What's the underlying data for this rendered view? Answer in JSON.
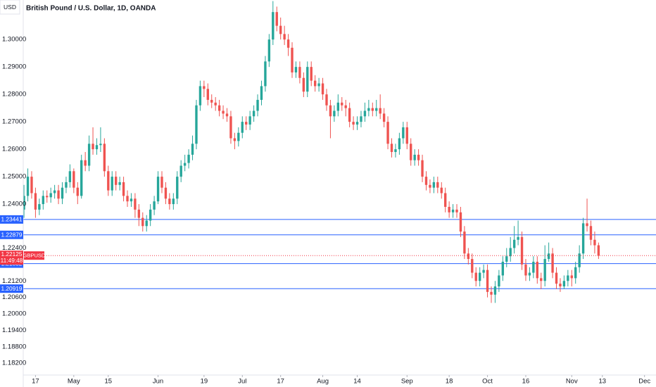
{
  "chart_data": {
    "type": "candlestick",
    "title": "British Pound / U.S. Dollar, 1D, OANDA",
    "currency": "USD",
    "up_color": "#26a69a",
    "down_color": "#ef5350",
    "grid": false,
    "ylim": [
      1.1777,
      1.3144
    ],
    "yticks": [
      {
        "value": 1.3,
        "label": "1.30000"
      },
      {
        "value": 1.29,
        "label": "1.29000"
      },
      {
        "value": 1.28,
        "label": "1.28000"
      },
      {
        "value": 1.27,
        "label": "1.27000"
      },
      {
        "value": 1.26,
        "label": "1.26000"
      },
      {
        "value": 1.25,
        "label": "1.25000"
      },
      {
        "value": 1.24,
        "label": "1.24000"
      },
      {
        "value": 1.224,
        "label": "1.22400"
      },
      {
        "value": 1.212,
        "label": "1.21200"
      },
      {
        "value": 1.206,
        "label": "1.20600"
      },
      {
        "value": 1.2,
        "label": "1.20000"
      },
      {
        "value": 1.194,
        "label": "1.19400"
      },
      {
        "value": 1.188,
        "label": "1.18800"
      },
      {
        "value": 1.182,
        "label": "1.18200"
      }
    ],
    "xlim": [
      -0.2,
      165
    ],
    "xticks": [
      {
        "value": 3,
        "label": "17"
      },
      {
        "value": 13,
        "label": "May"
      },
      {
        "value": 22,
        "label": "15"
      },
      {
        "value": 35,
        "label": "Jun"
      },
      {
        "value": 47,
        "label": "19"
      },
      {
        "value": 57,
        "label": "Jul"
      },
      {
        "value": 67,
        "label": "17"
      },
      {
        "value": 78,
        "label": "Aug"
      },
      {
        "value": 87,
        "label": "14"
      },
      {
        "value": 100,
        "label": "Sep"
      },
      {
        "value": 111,
        "label": "18"
      },
      {
        "value": 121,
        "label": "Oct"
      },
      {
        "value": 131,
        "label": "16"
      },
      {
        "value": 143,
        "label": "Nov"
      },
      {
        "value": 151,
        "label": "13"
      },
      {
        "value": 162,
        "label": "Dec"
      }
    ],
    "levels": {
      "color": "#2962ff",
      "values": [
        1.23441,
        1.22879,
        1.21832,
        1.20919
      ]
    },
    "last_price": {
      "value": 1.22125,
      "countdown": "11:49:48",
      "symbol": "GBPUSD",
      "color": "#f23645"
    },
    "open": [
      1.238,
      1.243,
      1.25,
      1.244,
      1.238,
      1.24,
      1.243,
      1.2425,
      1.244,
      1.245,
      1.242,
      1.246,
      1.248,
      1.252,
      1.246,
      1.243,
      1.256,
      1.254,
      1.262,
      1.26,
      1.2615,
      1.262,
      1.252,
      1.245,
      1.25,
      1.247,
      1.248,
      1.243,
      1.241,
      1.242,
      1.238,
      1.235,
      1.232,
      1.234,
      1.238,
      1.241,
      1.25,
      1.246,
      1.242,
      1.24,
      1.242,
      1.25,
      1.254,
      1.255,
      1.258,
      1.262,
      1.276,
      1.283,
      1.282,
      1.278,
      1.277,
      1.276,
      1.274,
      1.273,
      1.272,
      1.264,
      1.263,
      1.266,
      1.27,
      1.269,
      1.272,
      1.274,
      1.278,
      1.283,
      1.292,
      1.3,
      1.31,
      1.305,
      1.302,
      1.3,
      1.297,
      1.288,
      1.29,
      1.286,
      1.281,
      1.29,
      1.285,
      1.283,
      1.284,
      1.28,
      1.276,
      1.272,
      1.274,
      1.277,
      1.276,
      1.275,
      1.27,
      1.269,
      1.27,
      1.272,
      1.274,
      1.275,
      1.274,
      1.275,
      1.273,
      1.27,
      1.262,
      1.259,
      1.26,
      1.264,
      1.268,
      1.262,
      1.256,
      1.258,
      1.256,
      1.25,
      1.247,
      1.246,
      1.248,
      1.246,
      1.244,
      1.239,
      1.237,
      1.238,
      1.237,
      1.23,
      1.222,
      1.22,
      1.215,
      1.212,
      1.215,
      1.216,
      1.208,
      1.207,
      1.21,
      1.214,
      1.219,
      1.221,
      1.224,
      1.227,
      1.228,
      1.218,
      1.214,
      1.215,
      1.219,
      1.213,
      1.212,
      1.22,
      1.222,
      1.215,
      1.211,
      1.21,
      1.212,
      1.214,
      1.213,
      1.217,
      1.222,
      1.233,
      1.232,
      1.227,
      1.225
    ],
    "high": [
      1.247,
      1.253,
      1.252,
      1.246,
      1.242,
      1.245,
      1.245,
      1.246,
      1.247,
      1.247,
      1.248,
      1.25,
      1.2545,
      1.253,
      1.248,
      1.258,
      1.259,
      1.265,
      1.268,
      1.264,
      1.268,
      1.264,
      1.254,
      1.252,
      1.252,
      1.25,
      1.25,
      1.245,
      1.244,
      1.244,
      1.24,
      1.237,
      1.236,
      1.24,
      1.243,
      1.252,
      1.252,
      1.248,
      1.244,
      1.244,
      1.252,
      1.256,
      1.258,
      1.26,
      1.265,
      1.278,
      1.285,
      1.285,
      1.284,
      1.28,
      1.279,
      1.278,
      1.276,
      1.275,
      1.274,
      1.266,
      1.268,
      1.272,
      1.272,
      1.274,
      1.276,
      1.28,
      1.285,
      1.294,
      1.302,
      1.314,
      1.312,
      1.308,
      1.305,
      1.302,
      1.299,
      1.292,
      1.292,
      1.288,
      1.292,
      1.292,
      1.287,
      1.286,
      1.286,
      1.282,
      1.278,
      1.276,
      1.28,
      1.279,
      1.278,
      1.277,
      1.272,
      1.272,
      1.274,
      1.277,
      1.278,
      1.277,
      1.278,
      1.28,
      1.275,
      1.272,
      1.264,
      1.262,
      1.266,
      1.27,
      1.27,
      1.264,
      1.26,
      1.26,
      1.258,
      1.252,
      1.249,
      1.25,
      1.25,
      1.248,
      1.246,
      1.241,
      1.24,
      1.24,
      1.239,
      1.232,
      1.224,
      1.222,
      1.217,
      1.217,
      1.218,
      1.218,
      1.21,
      1.212,
      1.216,
      1.221,
      1.224,
      1.228,
      1.232,
      1.234,
      1.23,
      1.22,
      1.217,
      1.221,
      1.221,
      1.215,
      1.225,
      1.226,
      1.224,
      1.217,
      1.213,
      1.214,
      1.216,
      1.216,
      1.219,
      1.225,
      1.235,
      1.242,
      1.234,
      1.23,
      1.226
    ],
    "low": [
      1.235,
      1.241,
      1.242,
      1.235,
      1.236,
      1.238,
      1.2405,
      1.2405,
      1.242,
      1.24,
      1.24,
      1.244,
      1.246,
      1.244,
      1.24,
      1.242,
      1.252,
      1.252,
      1.258,
      1.258,
      1.259,
      1.25,
      1.243,
      1.243,
      1.245,
      1.245,
      1.241,
      1.239,
      1.239,
      1.235,
      1.232,
      1.23,
      1.23,
      1.232,
      1.236,
      1.24,
      1.244,
      1.24,
      1.238,
      1.238,
      1.24,
      1.248,
      1.252,
      1.253,
      1.256,
      1.26,
      1.274,
      1.279,
      1.276,
      1.275,
      1.274,
      1.272,
      1.271,
      1.27,
      1.262,
      1.26,
      1.261,
      1.264,
      1.267,
      1.267,
      1.27,
      1.272,
      1.276,
      1.281,
      1.29,
      1.298,
      1.303,
      1.3,
      1.298,
      1.294,
      1.286,
      1.286,
      1.284,
      1.279,
      1.279,
      1.283,
      1.281,
      1.281,
      1.278,
      1.274,
      1.264,
      1.27,
      1.272,
      1.274,
      1.272,
      1.268,
      1.267,
      1.267,
      1.268,
      1.27,
      1.272,
      1.272,
      1.272,
      1.271,
      1.268,
      1.26,
      1.257,
      1.257,
      1.258,
      1.262,
      1.26,
      1.254,
      1.254,
      1.254,
      1.248,
      1.245,
      1.244,
      1.244,
      1.244,
      1.242,
      1.237,
      1.235,
      1.235,
      1.235,
      1.228,
      1.22,
      1.218,
      1.213,
      1.21,
      1.21,
      1.213,
      1.206,
      1.204,
      1.204,
      1.208,
      1.212,
      1.217,
      1.219,
      1.222,
      1.225,
      1.216,
      1.212,
      1.212,
      1.213,
      1.211,
      1.209,
      1.21,
      1.219,
      1.213,
      1.209,
      1.208,
      1.209,
      1.21,
      1.21,
      1.211,
      1.215,
      1.22,
      1.23,
      1.225,
      1.222,
      1.22
    ],
    "close": [
      1.243,
      1.25,
      1.244,
      1.238,
      1.24,
      1.243,
      1.2425,
      1.244,
      1.245,
      1.242,
      1.246,
      1.248,
      1.252,
      1.246,
      1.243,
      1.256,
      1.254,
      1.262,
      1.26,
      1.2615,
      1.262,
      1.252,
      1.245,
      1.25,
      1.247,
      1.248,
      1.243,
      1.241,
      1.242,
      1.238,
      1.235,
      1.232,
      1.234,
      1.238,
      1.241,
      1.25,
      1.246,
      1.242,
      1.24,
      1.242,
      1.25,
      1.254,
      1.255,
      1.258,
      1.262,
      1.276,
      1.283,
      1.282,
      1.278,
      1.277,
      1.276,
      1.274,
      1.273,
      1.272,
      1.264,
      1.263,
      1.266,
      1.27,
      1.269,
      1.272,
      1.274,
      1.278,
      1.283,
      1.292,
      1.3,
      1.31,
      1.305,
      1.302,
      1.3,
      1.297,
      1.288,
      1.29,
      1.286,
      1.281,
      1.29,
      1.285,
      1.283,
      1.284,
      1.28,
      1.276,
      1.272,
      1.274,
      1.277,
      1.276,
      1.275,
      1.27,
      1.269,
      1.27,
      1.272,
      1.274,
      1.275,
      1.274,
      1.275,
      1.273,
      1.27,
      1.262,
      1.259,
      1.26,
      1.264,
      1.268,
      1.262,
      1.256,
      1.258,
      1.256,
      1.25,
      1.247,
      1.246,
      1.248,
      1.246,
      1.244,
      1.239,
      1.237,
      1.238,
      1.237,
      1.23,
      1.222,
      1.22,
      1.215,
      1.212,
      1.215,
      1.216,
      1.208,
      1.207,
      1.21,
      1.214,
      1.219,
      1.221,
      1.224,
      1.227,
      1.228,
      1.218,
      1.214,
      1.215,
      1.219,
      1.213,
      1.212,
      1.22,
      1.222,
      1.215,
      1.211,
      1.21,
      1.212,
      1.214,
      1.213,
      1.217,
      1.222,
      1.233,
      1.232,
      1.227,
      1.225,
      1.22125
    ]
  }
}
